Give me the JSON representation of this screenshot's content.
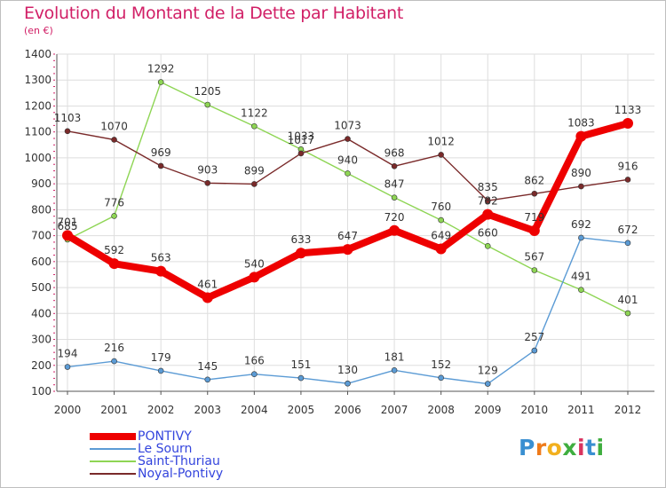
{
  "title": "Evolution du Montant de la Dette par Habitant",
  "subtitle": "(en €)",
  "logo": {
    "letters": [
      "P",
      "r",
      "o",
      "x",
      "i",
      "t",
      "i"
    ],
    "colors": [
      "#3a8fd1",
      "#ef7b1a",
      "#f2b01e",
      "#3fae3f",
      "#d9345f",
      "#3a8fd1",
      "#3fae3f"
    ]
  },
  "chart_data": {
    "type": "line",
    "title": "Evolution du Montant de la Dette par Habitant",
    "ylabel": "(en €)",
    "xlabel": "",
    "x": [
      "2000",
      "2001",
      "2002",
      "2003",
      "2004",
      "2005",
      "2006",
      "2007",
      "2008",
      "2009",
      "2010",
      "2011",
      "2012"
    ],
    "ylim": [
      100,
      1400
    ],
    "yticks": [
      100,
      200,
      300,
      400,
      500,
      600,
      700,
      800,
      900,
      1000,
      1100,
      1200,
      1300,
      1400
    ],
    "grid": true,
    "legend_position": "bottom-left",
    "series": [
      {
        "name": "PONTIVY",
        "color": "#ee0000",
        "values": [
          701,
          592,
          563,
          461,
          540,
          633,
          647,
          720,
          649,
          782,
          719,
          1083,
          1133
        ]
      },
      {
        "name": "Le Sourn",
        "color": "#5b9bd5",
        "values": [
          194,
          216,
          179,
          145,
          166,
          151,
          130,
          181,
          152,
          129,
          257,
          692,
          672
        ]
      },
      {
        "name": "Saint-Thuriau",
        "color": "#8ed554",
        "values": [
          685,
          776,
          1292,
          1205,
          1122,
          1033,
          940,
          847,
          760,
          660,
          567,
          491,
          401
        ]
      },
      {
        "name": "Noyal-Pontivy",
        "color": "#7a2a2a",
        "values": [
          1103,
          1070,
          969,
          903,
          899,
          1017,
          1073,
          968,
          1012,
          835,
          862,
          890,
          916
        ]
      }
    ]
  }
}
